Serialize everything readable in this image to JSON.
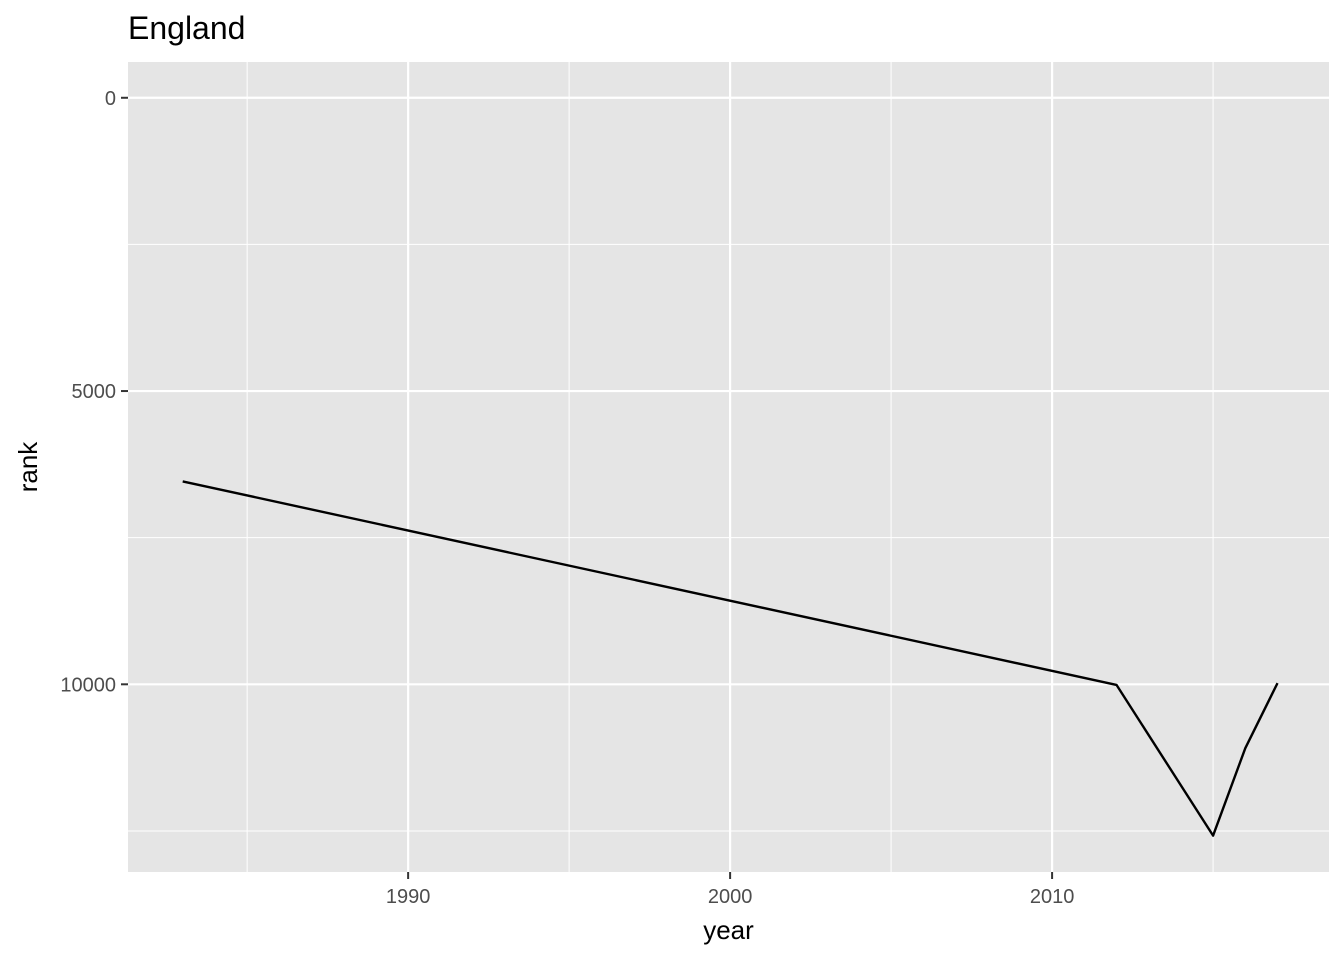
{
  "chart_data": {
    "type": "line",
    "title": "England",
    "xlabel": "year",
    "ylabel": "rank",
    "y_reversed": true,
    "xlim": [
      1981.3,
      2018.6
    ],
    "ylim": [
      -610,
      13200
    ],
    "x_ticks": [
      1990,
      2000,
      2010
    ],
    "x_tick_labels": [
      "1990",
      "2000",
      "2010"
    ],
    "x_minor_ticks": [
      1985,
      1995,
      2005,
      2015
    ],
    "y_ticks": [
      0,
      5000,
      10000
    ],
    "y_tick_labels": [
      "0",
      "5000",
      "10000"
    ],
    "y_minor_ticks": [
      2500,
      7500,
      12500
    ],
    "grid": true,
    "panel_background": "#e5e5e5",
    "grid_color": "#ffffff",
    "line_color": "#000000",
    "series": [
      {
        "x": [
          1983,
          2012,
          2015,
          2016,
          2017
        ],
        "y": [
          6540,
          10010,
          12580,
          11090,
          9980
        ]
      }
    ]
  }
}
